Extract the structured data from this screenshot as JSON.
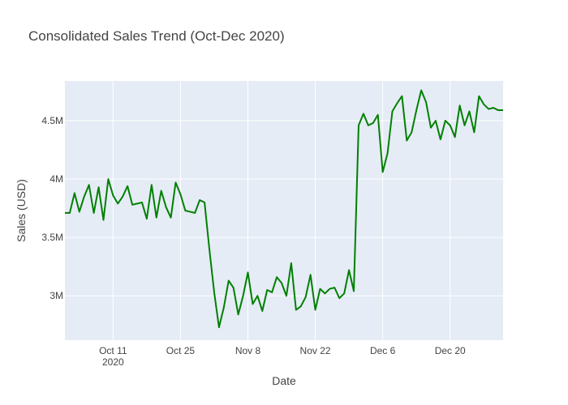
{
  "chart_data": {
    "type": "line",
    "title": "Consolidated Sales Trend (Oct-Dec 2020)",
    "xlabel": "Date",
    "ylabel": "Sales (USD)",
    "xlim": [
      "2020-10-01",
      "2020-12-31"
    ],
    "ylim": [
      2620000,
      4840000
    ],
    "x_ticks": [
      {
        "date": "2020-10-11",
        "label": "Oct 11",
        "sublabel": "2020"
      },
      {
        "date": "2020-10-25",
        "label": "Oct 25",
        "sublabel": ""
      },
      {
        "date": "2020-11-08",
        "label": "Nov 8",
        "sublabel": ""
      },
      {
        "date": "2020-11-22",
        "label": "Nov 22",
        "sublabel": ""
      },
      {
        "date": "2020-12-06",
        "label": "Dec 6",
        "sublabel": ""
      },
      {
        "date": "2020-12-20",
        "label": "Dec 20",
        "sublabel": ""
      }
    ],
    "y_ticks": [
      {
        "value": 3000000,
        "label": "3M"
      },
      {
        "value": 3500000,
        "label": "3.5M"
      },
      {
        "value": 4000000,
        "label": "4M"
      },
      {
        "value": 4500000,
        "label": "4.5M"
      }
    ],
    "grid": true,
    "colors": {
      "line": "#008000",
      "plot_bg": "#e5ecf6",
      "grid": "#ffffff",
      "text": "#444444"
    },
    "series": [
      {
        "x": [
          "2020-10-01",
          "2020-10-02",
          "2020-10-03",
          "2020-10-04",
          "2020-10-05",
          "2020-10-06",
          "2020-10-07",
          "2020-10-08",
          "2020-10-09",
          "2020-10-10",
          "2020-10-11",
          "2020-10-12",
          "2020-10-13",
          "2020-10-14",
          "2020-10-15",
          "2020-10-16",
          "2020-10-17",
          "2020-10-18",
          "2020-10-19",
          "2020-10-20",
          "2020-10-21",
          "2020-10-22",
          "2020-10-23",
          "2020-10-24",
          "2020-10-25",
          "2020-10-26",
          "2020-10-27",
          "2020-10-28",
          "2020-10-29",
          "2020-10-30",
          "2020-10-31",
          "2020-11-01",
          "2020-11-02",
          "2020-11-03",
          "2020-11-04",
          "2020-11-05",
          "2020-11-06",
          "2020-11-07",
          "2020-11-08",
          "2020-11-09",
          "2020-11-10",
          "2020-11-11",
          "2020-11-12",
          "2020-11-13",
          "2020-11-14",
          "2020-11-15",
          "2020-11-16",
          "2020-11-17",
          "2020-11-18",
          "2020-11-19",
          "2020-11-20",
          "2020-11-21",
          "2020-11-22",
          "2020-11-23",
          "2020-11-24",
          "2020-11-25",
          "2020-11-26",
          "2020-11-27",
          "2020-11-28",
          "2020-11-29",
          "2020-11-30",
          "2020-12-01",
          "2020-12-02",
          "2020-12-03",
          "2020-12-04",
          "2020-12-05",
          "2020-12-06",
          "2020-12-07",
          "2020-12-08",
          "2020-12-09",
          "2020-12-10",
          "2020-12-11",
          "2020-12-12",
          "2020-12-13",
          "2020-12-14",
          "2020-12-15",
          "2020-12-16",
          "2020-12-17",
          "2020-12-18",
          "2020-12-19",
          "2020-12-20",
          "2020-12-21",
          "2020-12-22",
          "2020-12-23",
          "2020-12-24",
          "2020-12-25",
          "2020-12-26",
          "2020-12-27",
          "2020-12-28",
          "2020-12-29",
          "2020-12-30",
          "2020-12-31"
        ],
        "y": [
          3710000,
          3710000,
          3880000,
          3720000,
          3850000,
          3950000,
          3710000,
          3930000,
          3650000,
          4000000,
          3860000,
          3790000,
          3850000,
          3940000,
          3780000,
          3790000,
          3800000,
          3660000,
          3950000,
          3670000,
          3900000,
          3760000,
          3670000,
          3970000,
          3870000,
          3730000,
          3720000,
          3710000,
          3820000,
          3800000,
          3400000,
          3030000,
          2730000,
          2900000,
          3130000,
          3070000,
          2840000,
          3000000,
          3200000,
          2930000,
          3000000,
          2870000,
          3050000,
          3030000,
          3160000,
          3110000,
          3000000,
          3280000,
          2880000,
          2910000,
          2990000,
          3180000,
          2880000,
          3060000,
          3020000,
          3060000,
          3070000,
          2980000,
          3020000,
          3220000,
          3040000,
          4460000,
          4560000,
          4460000,
          4480000,
          4550000,
          4060000,
          4220000,
          4580000,
          4650000,
          4710000,
          4330000,
          4400000,
          4590000,
          4760000,
          4660000,
          4440000,
          4500000,
          4340000,
          4500000,
          4460000,
          4360000,
          4630000,
          4460000,
          4580000,
          4400000,
          4710000,
          4640000,
          4600000,
          4610000,
          4590000,
          4590000
        ]
      }
    ]
  }
}
